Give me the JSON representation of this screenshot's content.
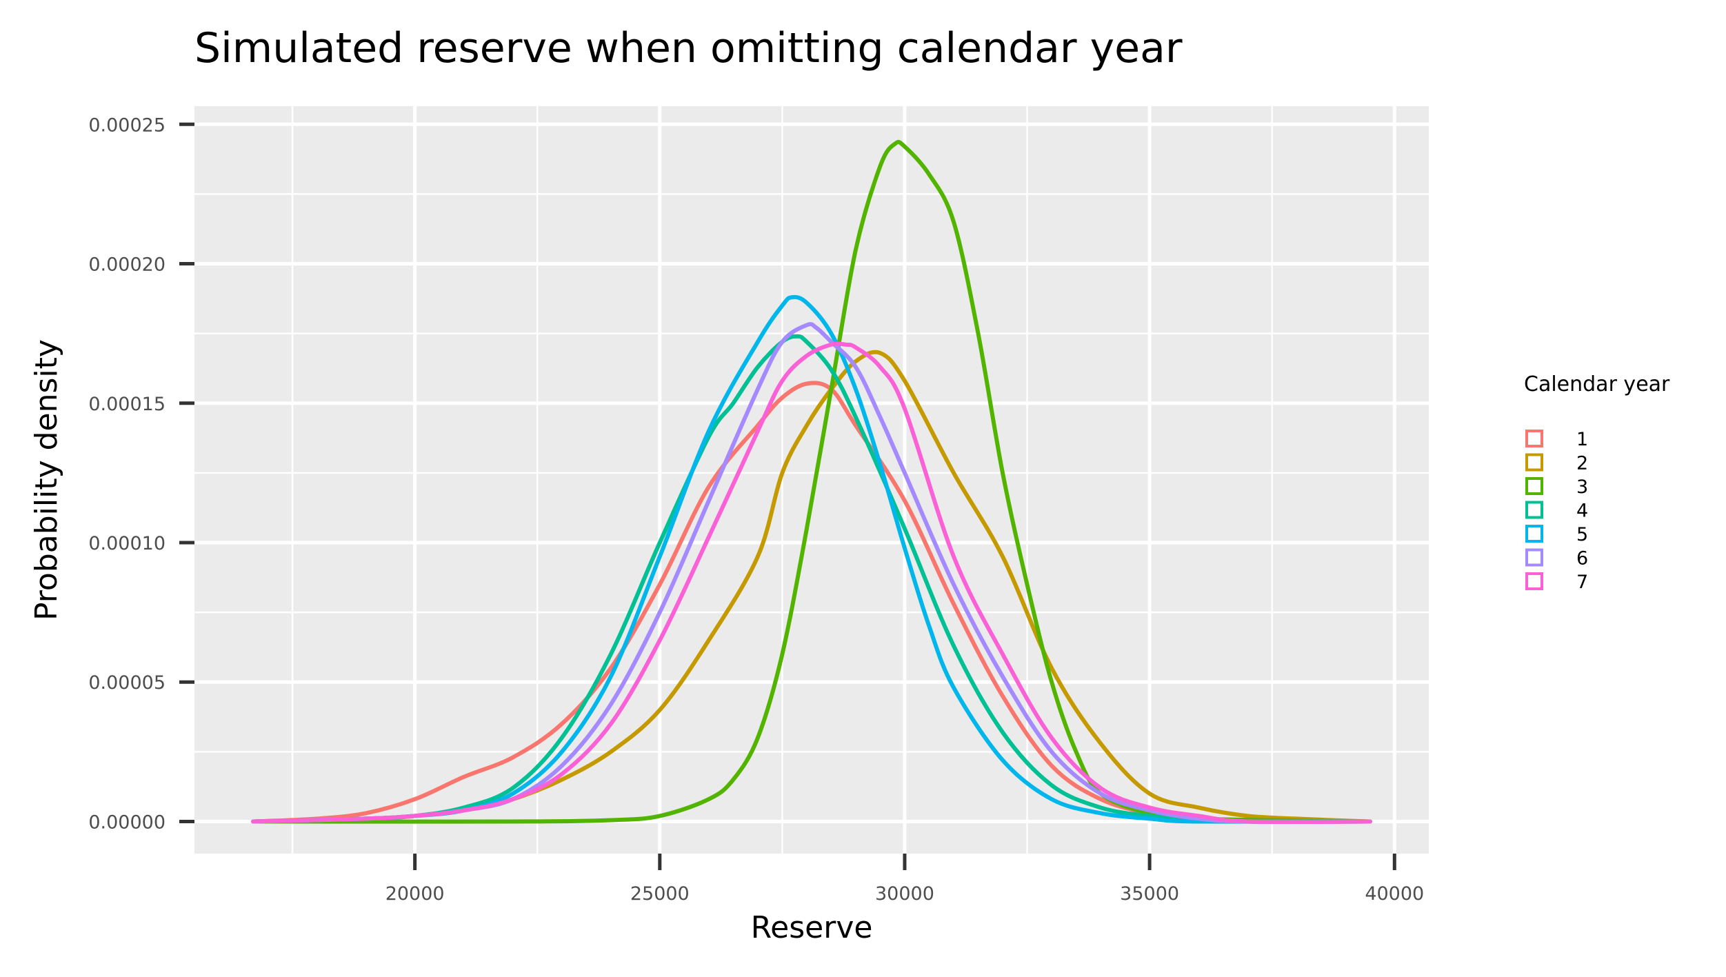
{
  "chart_data": {
    "type": "line",
    "title": "Simulated reserve when omitting calendar year",
    "xlabel": "Reserve",
    "ylabel": "Probability density",
    "xlim": [
      15500,
      40700
    ],
    "ylim": [
      -1.15e-05,
      0.0002565
    ],
    "x_ticks": [
      20000,
      25000,
      30000,
      35000,
      40000
    ],
    "x_tick_labels": [
      "20000",
      "25000",
      "30000",
      "35000",
      "40000"
    ],
    "y_ticks": [
      0,
      5e-05,
      0.0001,
      0.00015,
      0.0002,
      0.00025
    ],
    "y_tick_labels": [
      "0.00000",
      "0.00005",
      "0.00010",
      "0.00015",
      "0.00020",
      "0.00025"
    ],
    "grid": true,
    "legend": {
      "title": "Calendar year",
      "position": "right"
    },
    "series": [
      {
        "name": "1",
        "color": "#F8766D",
        "x": [
          16700,
          18000,
          19000,
          20000,
          21000,
          22000,
          23000,
          24000,
          25000,
          26000,
          27000,
          27500,
          28000,
          28500,
          29000,
          30000,
          31000,
          32000,
          33000,
          34000,
          35000,
          36000,
          37000,
          38000,
          39500
        ],
        "y": [
          0,
          1e-06,
          3e-06,
          8e-06,
          1.6e-05,
          2.3e-05,
          3.5e-05,
          5.5e-05,
          8.5e-05,
          0.00012,
          0.000142,
          0.000152,
          0.000157,
          0.000155,
          0.000142,
          0.000115,
          7.8e-05,
          4.5e-05,
          2e-05,
          8e-06,
          3e-06,
          1e-06,
          0,
          0,
          0
        ]
      },
      {
        "name": "2",
        "color": "#C49A00",
        "x": [
          16700,
          19000,
          20000,
          21000,
          22000,
          23000,
          24000,
          25000,
          26000,
          27000,
          27500,
          28000,
          28500,
          29000,
          29500,
          30000,
          31000,
          32000,
          33000,
          34000,
          35000,
          36000,
          37000,
          38000,
          39500
        ],
        "y": [
          0,
          1e-06,
          2e-06,
          4e-06,
          8e-06,
          1.5e-05,
          2.5e-05,
          4e-05,
          6.5e-05,
          9.5e-05,
          0.000125,
          0.000142,
          0.000155,
          0.000165,
          0.000168,
          0.000158,
          0.000125,
          9.5e-05,
          5.5e-05,
          2.8e-05,
          1e-05,
          5e-06,
          2e-06,
          1e-06,
          0
        ]
      },
      {
        "name": "3",
        "color": "#53B400",
        "x": [
          16700,
          22000,
          24000,
          25000,
          26000,
          26500,
          27000,
          27500,
          28000,
          28500,
          29000,
          29500,
          29800,
          30000,
          30500,
          31000,
          31500,
          32000,
          32500,
          33000,
          33500,
          34000,
          35000,
          36000,
          39500
        ],
        "y": [
          0,
          0,
          5e-07,
          2e-06,
          8e-06,
          1.5e-05,
          3e-05,
          6e-05,
          0.000105,
          0.000155,
          0.000205,
          0.000235,
          0.000243,
          0.000242,
          0.000232,
          0.000215,
          0.000175,
          0.000125,
          8.5e-05,
          5e-05,
          2.5e-05,
          1e-05,
          3e-06,
          1e-06,
          0
        ]
      },
      {
        "name": "4",
        "color": "#00C094",
        "x": [
          16700,
          19000,
          20000,
          21000,
          22000,
          23000,
          24000,
          25000,
          26000,
          26500,
          27000,
          27500,
          27800,
          28000,
          28500,
          29000,
          30000,
          31000,
          32000,
          33000,
          34000,
          35000,
          36000,
          37000,
          39500
        ],
        "y": [
          0,
          1e-06,
          2e-06,
          5e-06,
          1.2e-05,
          3e-05,
          6e-05,
          0.0001,
          0.000138,
          0.00015,
          0.000163,
          0.000172,
          0.000174,
          0.000172,
          0.000162,
          0.000145,
          0.000105,
          6.3e-05,
          3.2e-05,
          1.3e-05,
          5e-06,
          2e-06,
          1e-06,
          0,
          0
        ]
      },
      {
        "name": "5",
        "color": "#00B6EB",
        "x": [
          16700,
          19000,
          20000,
          21000,
          22000,
          23000,
          24000,
          25000,
          26000,
          27000,
          27500,
          27700,
          28000,
          28500,
          29000,
          29500,
          30000,
          30500,
          31000,
          32000,
          33000,
          34000,
          35000,
          36000,
          39500
        ],
        "y": [
          0,
          1e-06,
          2e-06,
          4e-06,
          1e-05,
          2.5e-05,
          5.2e-05,
          9.5e-05,
          0.00014,
          0.000172,
          0.000185,
          0.000188,
          0.000186,
          0.000175,
          0.000155,
          0.000128,
          9.8e-05,
          7e-05,
          4.8e-05,
          2.2e-05,
          8e-06,
          3e-06,
          1e-06,
          0,
          0
        ]
      },
      {
        "name": "6",
        "color": "#A58AFF",
        "x": [
          16700,
          19000,
          20000,
          21000,
          22000,
          23000,
          24000,
          25000,
          26000,
          27000,
          27500,
          28000,
          28200,
          28500,
          29000,
          29500,
          30000,
          31000,
          32000,
          33000,
          34000,
          35000,
          36000,
          37000,
          39500
        ],
        "y": [
          0,
          1e-06,
          2e-06,
          4e-06,
          8e-06,
          2e-05,
          4.2e-05,
          7.5e-05,
          0.000115,
          0.000155,
          0.000172,
          0.000178,
          0.000177,
          0.000172,
          0.000163,
          0.000145,
          0.000125,
          8.5e-05,
          5.2e-05,
          2.5e-05,
          1e-05,
          4e-06,
          1e-06,
          0,
          0
        ]
      },
      {
        "name": "7",
        "color": "#FB61D7",
        "x": [
          16700,
          19000,
          20000,
          21000,
          22000,
          23000,
          24000,
          25000,
          26000,
          27000,
          27500,
          28000,
          28500,
          28800,
          29000,
          29500,
          30000,
          31000,
          32000,
          33000,
          34000,
          35000,
          36000,
          37000,
          39500
        ],
        "y": [
          0,
          1e-06,
          2e-06,
          4e-06,
          8e-06,
          1.7e-05,
          3.5e-05,
          6.5e-05,
          0.000102,
          0.00014,
          0.000158,
          0.000167,
          0.000171,
          0.000171,
          0.00017,
          0.000163,
          0.000148,
          9.5e-05,
          6e-05,
          3e-05,
          1.2e-05,
          5e-06,
          2e-06,
          0,
          0
        ]
      }
    ]
  }
}
